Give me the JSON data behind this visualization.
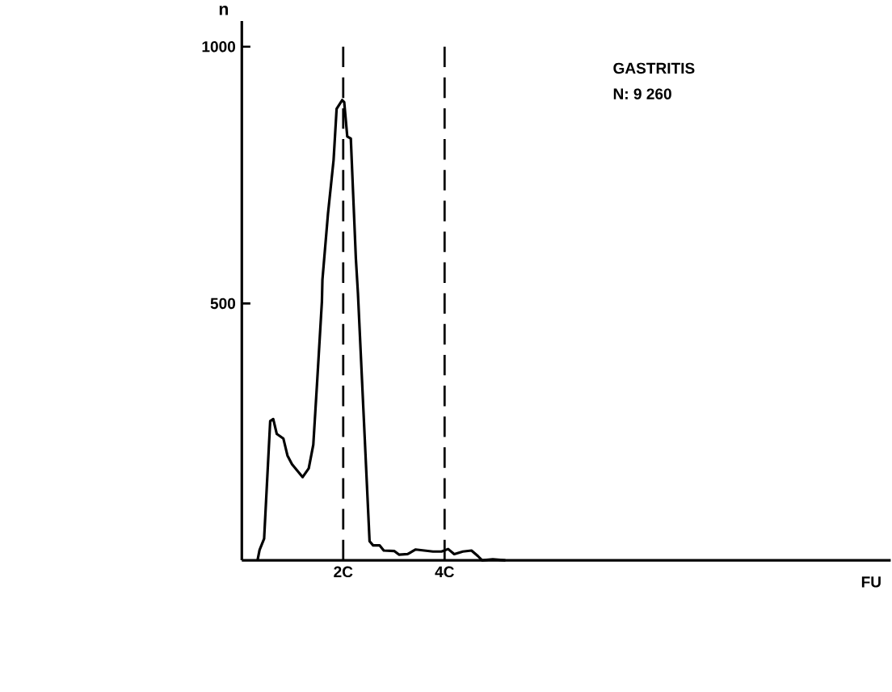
{
  "chart_data": {
    "type": "line",
    "xlabel": "FU",
    "ylabel": "n",
    "annotations": [
      "GASTRITIS",
      "N: 9 260"
    ],
    "x": [
      0.31,
      0.35,
      0.44,
      0.56,
      0.62,
      0.69,
      0.82,
      0.9,
      0.99,
      1.2,
      1.32,
      1.41,
      1.49,
      1.58,
      1.59,
      1.7,
      1.81,
      1.87,
      1.98,
      2.02,
      2.08,
      2.15,
      2.25,
      2.29,
      2.52,
      2.59,
      2.72,
      2.8,
      3.01,
      3.1,
      3.27,
      3.43,
      3.77,
      3.94,
      4.07,
      4.19,
      4.36,
      4.53,
      4.66,
      4.74,
      4.95,
      5.2
    ],
    "series": [
      {
        "color": "#000000",
        "values": [
          0,
          20,
          42,
          271,
          275,
          246,
          237,
          204,
          187,
          162,
          179,
          225,
          354,
          504,
          546,
          675,
          779,
          879,
          896,
          892,
          825,
          821,
          587,
          521,
          37,
          29,
          29,
          19,
          18,
          11,
          12,
          21,
          17,
          17,
          22,
          12,
          17,
          19,
          8,
          0,
          2,
          0
        ]
      }
    ],
    "xlim": [
      0,
      12.8
    ],
    "ylim": [
      0,
      1050
    ],
    "xticks": [
      {
        "value": 2,
        "label": "2C"
      },
      {
        "value": 4,
        "label": "4C"
      }
    ],
    "yticks": [
      500,
      1000
    ],
    "ref_lines": [
      {
        "axis": "x",
        "value": 2,
        "line_style": "dashed"
      },
      {
        "axis": "x",
        "value": 4,
        "line_style": "dashed"
      }
    ],
    "marker": "none",
    "line_style": "solid"
  }
}
